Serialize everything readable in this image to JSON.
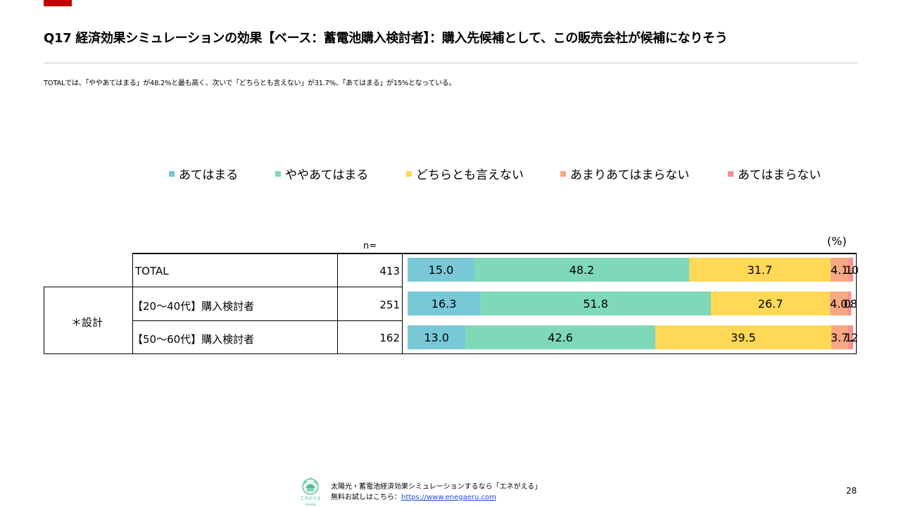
{
  "slide": {
    "title": "Q17 経済効果シミュレーションの効果【ベース：蓄電池購入検討者】：購入先候補として、この販売会社が候補になりそう",
    "summary": "TOTALでは、「ややあてはまる」が48.2%と最も高く、次いで「どちらとも言えない」が31.7%、「あてはまる」が15%となっている。",
    "page_number": "28"
  },
  "table": {
    "n_header": "n=",
    "unit": "(%)",
    "group_label": "＊設計",
    "rows": [
      {
        "label": "TOTAL",
        "n": "413"
      },
      {
        "label": "【20～40代】購入検討者",
        "n": "251"
      },
      {
        "label": "【50～60代】購入検討者",
        "n": "162"
      }
    ]
  },
  "chart_data": {
    "type": "bar",
    "orientation": "horizontal",
    "stacked": true,
    "categories": [
      "TOTAL",
      "【20～40代】購入検討者",
      "【50～60代】購入検討者"
    ],
    "series": [
      {
        "name": "あてはまる",
        "color": "#78c8d8",
        "values": [
          15.0,
          16.3,
          13.0
        ]
      },
      {
        "name": "ややあてはまる",
        "color": "#7fd8b8",
        "values": [
          48.2,
          51.8,
          42.6
        ]
      },
      {
        "name": "どちらとも言えない",
        "color": "#ffd855",
        "values": [
          31.7,
          26.7,
          39.5
        ]
      },
      {
        "name": "あまりあてはまらない",
        "color": "#f8a882",
        "values": [
          4.1,
          4.0,
          3.7
        ]
      },
      {
        "name": "あてはまらない",
        "color": "#f89090",
        "values": [
          1.0,
          0.8,
          1.2
        ]
      }
    ],
    "data_labels": [
      [
        "15.0",
        "48.2",
        "31.7",
        "4.1",
        "1.0"
      ],
      [
        "16.3",
        "51.8",
        "26.7",
        "4.0",
        "0.8"
      ],
      [
        "13.0",
        "42.6",
        "39.5",
        "3.7",
        "1.2"
      ]
    ],
    "xlim": [
      0,
      100
    ],
    "legend_position": "top"
  },
  "footer": {
    "logo_text": "エネがえる",
    "logo_subtext": "inside",
    "line1": "太陽光・蓄電池経済効果シミュレーションするなら「エネがえる」",
    "line2_prefix": "無料お試しはこちら：",
    "link_text": "https://www.enegaeru.com"
  }
}
